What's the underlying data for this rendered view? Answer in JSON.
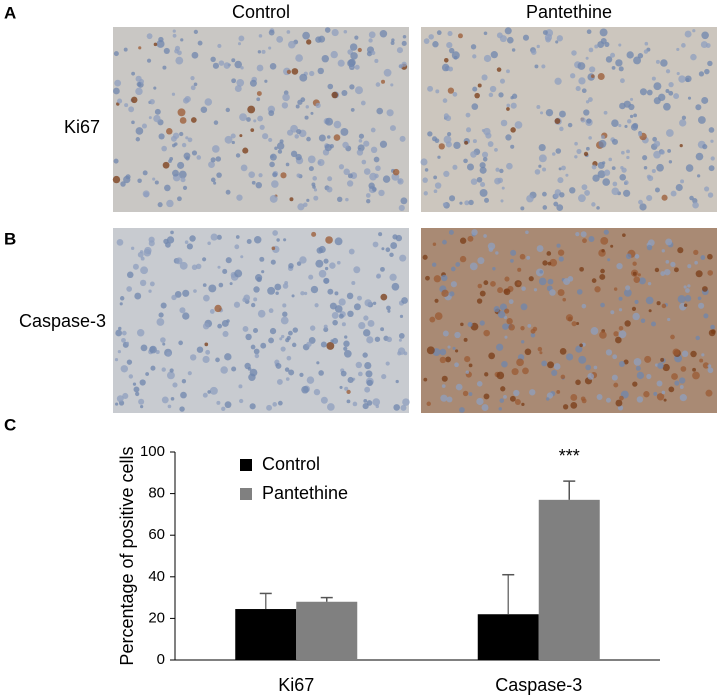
{
  "figure": {
    "panel_labels": [
      "A",
      "B",
      "C"
    ],
    "columns": [
      "Control",
      "Pantethine"
    ],
    "rows": [
      "Ki67",
      "Caspase-3"
    ]
  },
  "chart_data": {
    "type": "bar",
    "y_label": "Percentage of positive cells",
    "categories": [
      "Ki67",
      "Caspase-3"
    ],
    "series": [
      {
        "name": "Control",
        "color": "#000000",
        "values": [
          24.5,
          22
        ],
        "errors": [
          7.5,
          19
        ]
      },
      {
        "name": "Pantethine",
        "color": "#808080",
        "values": [
          28,
          77
        ],
        "errors": [
          2,
          9
        ]
      }
    ],
    "ylim": [
      0,
      100
    ],
    "yticks": [
      0,
      20,
      40,
      60,
      80,
      100
    ],
    "annotation": "***"
  }
}
